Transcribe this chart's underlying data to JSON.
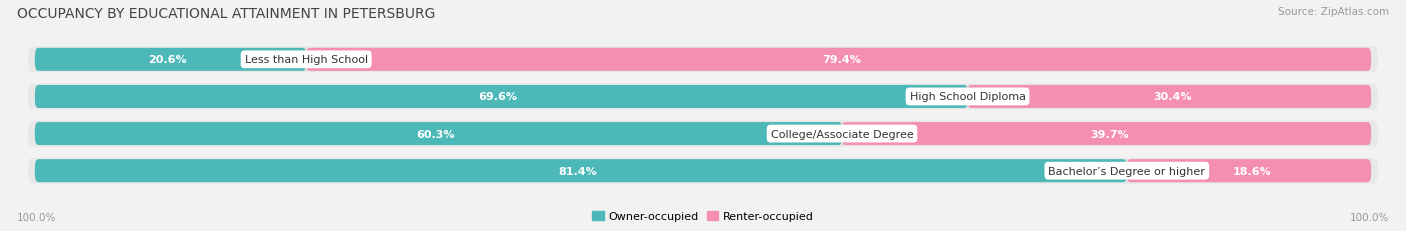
{
  "title": "OCCUPANCY BY EDUCATIONAL ATTAINMENT IN PETERSBURG",
  "source": "Source: ZipAtlas.com",
  "categories": [
    "Less than High School",
    "High School Diploma",
    "College/Associate Degree",
    "Bachelor’s Degree or higher"
  ],
  "owner_values": [
    20.6,
    69.6,
    60.3,
    81.4
  ],
  "renter_values": [
    79.4,
    30.4,
    39.7,
    18.6
  ],
  "owner_color": "#4db8b8",
  "renter_color": "#f48fb1",
  "bg_color": "#f2f2f2",
  "row_bg_color": "#e8e8e8",
  "bar_bg_color": "#dcdcdc",
  "title_fontsize": 10,
  "source_fontsize": 7.5,
  "label_fontsize": 8,
  "value_fontsize": 8,
  "axis_label_fontsize": 7.5,
  "axis_label_left": "100.0%",
  "axis_label_right": "100.0%",
  "legend_label_owner": "Owner-occupied",
  "legend_label_renter": "Renter-occupied"
}
